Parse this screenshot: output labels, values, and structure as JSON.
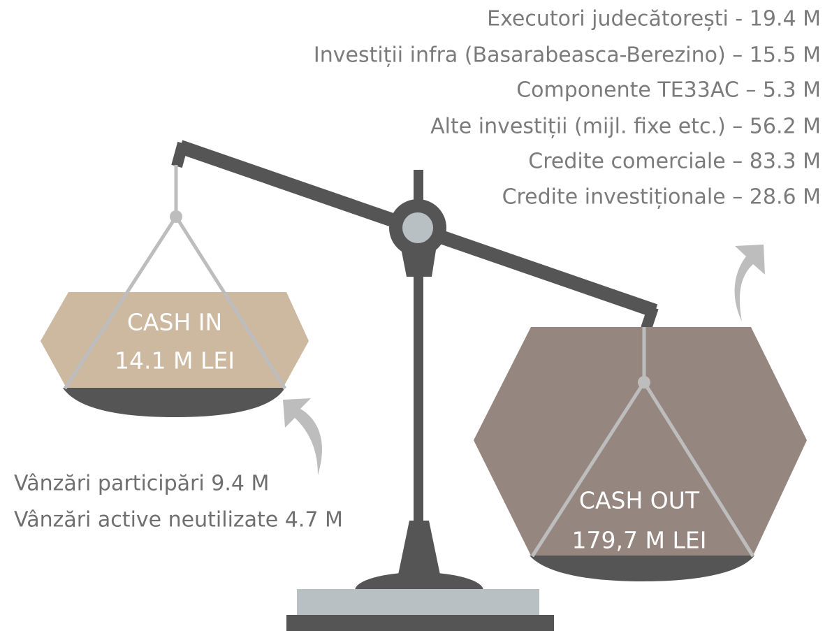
{
  "cash_in": {
    "title": "CASH IN",
    "amount": "14.1 M LEI",
    "items": [
      "Vânzări participări 9.4 M",
      "Vânzări active neutilizate 4.7 M"
    ]
  },
  "cash_out": {
    "title": "CASH OUT",
    "amount": "179,7 M LEI",
    "items": [
      "Executori judecătorești  - 19.4 M",
      "Investiții infra (Basarabeasca-Berezino) – 15.5 M",
      "Componente TE33AC – 5.3 M",
      "Alte investiții (mijl. fixe etc.) – 56.2 M",
      "Credite comerciale – 83.3 M",
      "Credite investiționale – 28.6 M"
    ]
  }
}
